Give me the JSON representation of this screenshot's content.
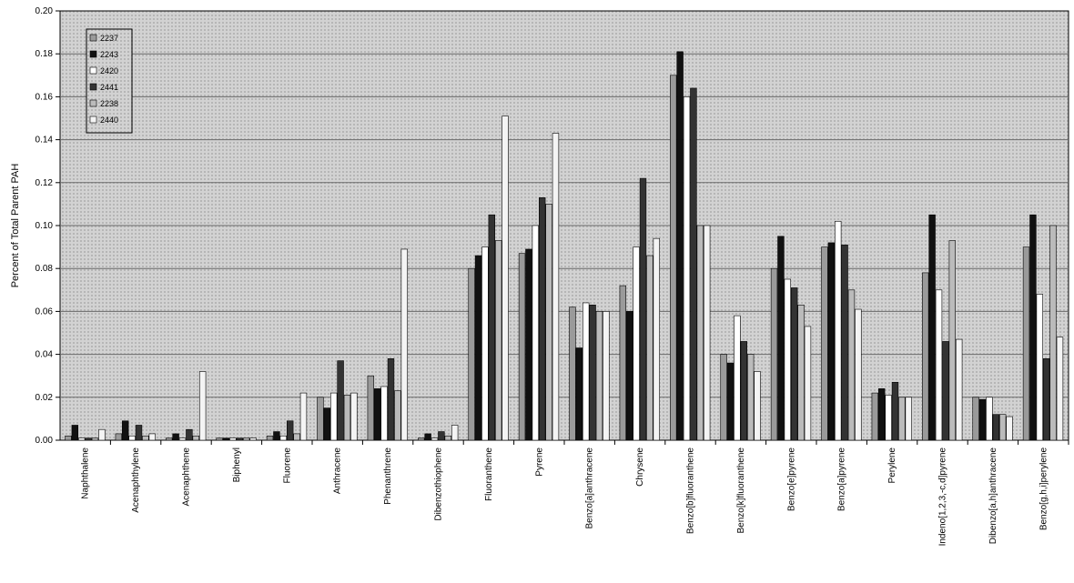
{
  "chart_data": {
    "type": "bar",
    "title": "",
    "xlabel": "",
    "ylabel": "Percent of Total Parent PAH",
    "ylim": [
      0,
      0.2
    ],
    "yticks": [
      "0.00",
      "0.02",
      "0.04",
      "0.06",
      "0.08",
      "0.10",
      "0.12",
      "0.14",
      "0.16",
      "0.18",
      "0.20"
    ],
    "grid": true,
    "legend_position": "top-left",
    "categories": [
      "Naphthalene",
      "Acenaphthylene",
      "Acenaphthene",
      "Biphenyl",
      "Fluorene",
      "Anthracene",
      "Phenanthrene",
      "Dibenzothiophene",
      "Fluoranthene",
      "Pyrene",
      "Benzo[a]anthracene",
      "Chrysene",
      "Benzo[b]fluoranthene",
      "Benzo[k]fluoranthene",
      "Benzo[e]pyrene",
      "Benzo[a]pyrene",
      "Perylene",
      "Indeno[1,2,3,-c,d]pyrene",
      "Dibenzo[a,h]anthracene",
      "Benzo[g,h,i]perylene"
    ],
    "series": [
      {
        "name": "2237",
        "color": "#9a9a9a",
        "values": [
          0.002,
          0.003,
          0.001,
          0.001,
          0.002,
          0.02,
          0.03,
          0.001,
          0.08,
          0.087,
          0.062,
          0.072,
          0.17,
          0.04,
          0.08,
          0.09,
          0.022,
          0.078,
          0.02,
          0.09
        ]
      },
      {
        "name": "2243",
        "color": "#111111",
        "values": [
          0.007,
          0.009,
          0.003,
          0.001,
          0.004,
          0.015,
          0.024,
          0.003,
          0.086,
          0.089,
          0.043,
          0.06,
          0.181,
          0.036,
          0.095,
          0.092,
          0.024,
          0.105,
          0.019,
          0.105
        ]
      },
      {
        "name": "2420",
        "color": "#ffffff",
        "values": [
          0.001,
          0.002,
          0.001,
          0.001,
          0.002,
          0.022,
          0.025,
          0.001,
          0.09,
          0.1,
          0.064,
          0.09,
          0.16,
          0.058,
          0.075,
          0.102,
          0.021,
          0.07,
          0.02,
          0.068
        ]
      },
      {
        "name": "2441",
        "color": "#333333",
        "values": [
          0.001,
          0.007,
          0.005,
          0.001,
          0.009,
          0.037,
          0.038,
          0.004,
          0.105,
          0.113,
          0.063,
          0.122,
          0.164,
          0.046,
          0.071,
          0.091,
          0.027,
          0.046,
          0.012,
          0.038
        ]
      },
      {
        "name": "2238",
        "color": "#bbbbbb",
        "values": [
          0.001,
          0.002,
          0.002,
          0.001,
          0.003,
          0.021,
          0.023,
          0.002,
          0.093,
          0.11,
          0.06,
          0.086,
          0.1,
          0.04,
          0.063,
          0.07,
          0.02,
          0.093,
          0.012,
          0.1
        ]
      },
      {
        "name": "2440",
        "color": "#f4f4f4",
        "values": [
          0.005,
          0.003,
          0.032,
          0.001,
          0.022,
          0.022,
          0.089,
          0.007,
          0.151,
          0.143,
          0.06,
          0.094,
          0.1,
          0.032,
          0.053,
          0.061,
          0.02,
          0.047,
          0.011,
          0.048
        ]
      }
    ]
  }
}
